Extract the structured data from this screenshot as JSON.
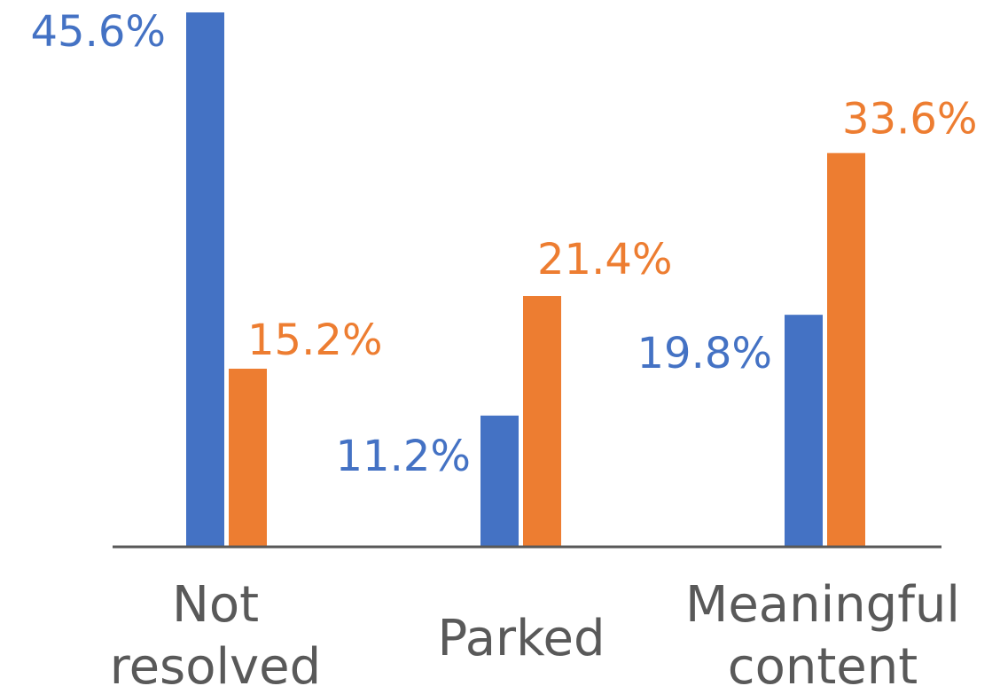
{
  "chart_data": {
    "type": "bar",
    "categories": [
      [
        "Not",
        "resolved"
      ],
      [
        "Parked"
      ],
      [
        "Meaningful",
        "content"
      ]
    ],
    "series": [
      {
        "color": "#4472C4",
        "values": [
          45.6,
          11.2,
          19.8
        ],
        "labels": [
          "45.6%",
          "11.2%",
          "19.8%"
        ]
      },
      {
        "color": "#ED7D31",
        "values": [
          15.2,
          21.4,
          33.6
        ],
        "labels": [
          "15.2%",
          "21.4%",
          "33.6%"
        ]
      }
    ],
    "ylim": [
      0,
      45.6
    ],
    "grid": false,
    "legend": "none",
    "axis_color": "#595959",
    "label_color": "#595959"
  }
}
